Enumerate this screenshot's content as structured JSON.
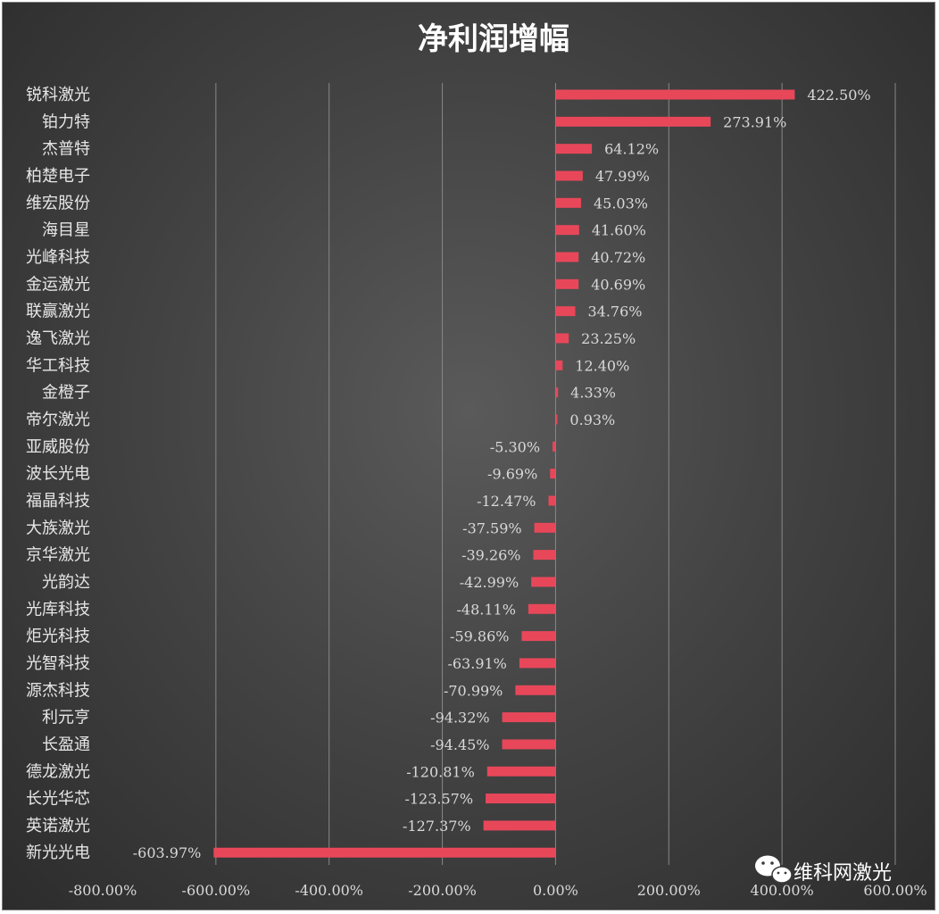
{
  "chart_data": {
    "type": "bar",
    "orientation": "horizontal",
    "title": "净利润增幅",
    "categories": [
      "锐科激光",
      "铂力特",
      "杰普特",
      "柏楚电子",
      "维宏股份",
      "海目星",
      "光峰科技",
      "金运激光",
      "联赢激光",
      "逸飞激光",
      "华工科技",
      "金橙子",
      "帝尔激光",
      "亚威股份",
      "波长光电",
      "福晶科技",
      "大族激光",
      "京华激光",
      "光韵达",
      "光库科技",
      "炬光科技",
      "光智科技",
      "源杰科技",
      "利元亨",
      "长盈通",
      "德龙激光",
      "长光华芯",
      "英诺激光",
      "新光光电"
    ],
    "values": [
      422.5,
      273.91,
      64.12,
      47.99,
      45.03,
      41.6,
      40.72,
      40.69,
      34.76,
      23.25,
      12.4,
      4.33,
      0.93,
      -5.3,
      -9.69,
      -12.47,
      -37.59,
      -39.26,
      -42.99,
      -48.11,
      -59.86,
      -63.91,
      -70.99,
      -94.32,
      -94.45,
      -120.81,
      -123.57,
      -127.37,
      -603.97
    ],
    "value_labels": [
      "422.50%",
      "273.91%",
      "64.12%",
      "47.99%",
      "45.03%",
      "41.60%",
      "40.72%",
      "40.69%",
      "34.76%",
      "23.25%",
      "12.40%",
      "4.33%",
      "0.93%",
      "-5.30%",
      "-9.69%",
      "-12.47%",
      "-37.59%",
      "-39.26%",
      "-42.99%",
      "-48.11%",
      "-59.86%",
      "-63.91%",
      "-70.99%",
      "-94.32%",
      "-94.45%",
      "-120.81%",
      "-123.57%",
      "-127.37%",
      "-603.97%"
    ],
    "xlim": [
      -800,
      600
    ],
    "x_ticks": [
      -800,
      -600,
      -400,
      -200,
      0,
      200,
      400,
      600
    ],
    "x_tick_labels": [
      "-800.00%",
      "-600.00%",
      "-400.00%",
      "-200.00%",
      "0.00%",
      "200.00%",
      "400.00%",
      "600.00%"
    ],
    "grid": "vertical",
    "legend": "none",
    "colors": {
      "bar": "#e8475a",
      "background": "#404040",
      "grid": "#888888",
      "text": "#e6e6e6"
    }
  },
  "watermark": {
    "text": "维科网激光",
    "icon": "wechat-icon"
  }
}
